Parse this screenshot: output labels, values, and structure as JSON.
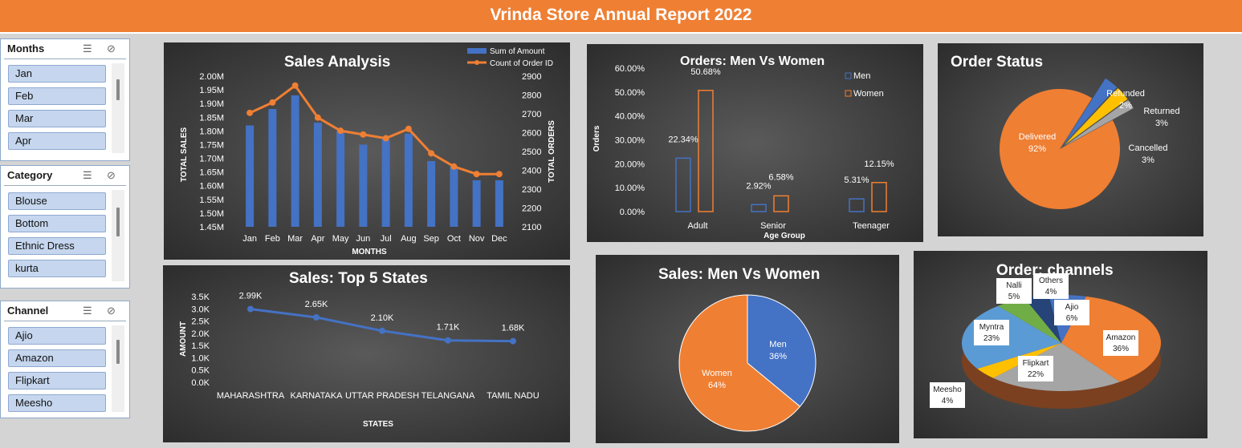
{
  "banner": {
    "title": "Vrinda Store Annual Report 2022"
  },
  "slicers": {
    "months": {
      "title": "Months",
      "items": [
        "Jan",
        "Feb",
        "Mar",
        "Apr"
      ]
    },
    "category": {
      "title": "Category",
      "items": [
        "Blouse",
        "Bottom",
        "Ethnic Dress",
        "kurta"
      ]
    },
    "channel": {
      "title": "Channel",
      "items": [
        "Ajio",
        "Amazon",
        "Flipkart",
        "Meesho"
      ]
    }
  },
  "icons": {
    "multiselect": "multi-select-icon",
    "clear_filter": "clear-filter-icon"
  },
  "colors": {
    "orange": "#ef7f33",
    "blue": "#4472c4",
    "gray": "#a5a5a5",
    "yellow": "#ffc000",
    "green": "#70ad47",
    "navy": "#264478",
    "lightblue": "#5b9bd5"
  },
  "chart_data": [
    {
      "id": "sales_analysis",
      "type": "bar",
      "title": "Sales Analysis",
      "xlabel": "MONTHS",
      "ylabel": "TOTAL SALES",
      "y2label": "TOTAL ORDERS",
      "categories": [
        "Jan",
        "Feb",
        "Mar",
        "Apr",
        "May",
        "Jun",
        "Jul",
        "Aug",
        "Sep",
        "Oct",
        "Nov",
        "Dec"
      ],
      "ylim": [
        1.45,
        2.0
      ],
      "y_ticks": [
        "2.00M",
        "1.95M",
        "1.90M",
        "1.85M",
        "1.80M",
        "1.75M",
        "1.70M",
        "1.65M",
        "1.60M",
        "1.55M",
        "1.50M",
        "1.45M"
      ],
      "y2lim": [
        2100,
        2900
      ],
      "y2_ticks": [
        "2900",
        "2800",
        "2700",
        "2600",
        "2500",
        "2400",
        "2300",
        "2200",
        "2100"
      ],
      "legend_position": "top-right",
      "series": [
        {
          "name": "Sum of Amount",
          "type": "bar",
          "values": [
            1.82,
            1.88,
            1.93,
            1.83,
            1.8,
            1.75,
            1.77,
            1.79,
            1.69,
            1.67,
            1.62,
            1.62
          ]
        },
        {
          "name": "Count of Order ID",
          "type": "line",
          "values": [
            2705,
            2760,
            2850,
            2680,
            2610,
            2590,
            2570,
            2620,
            2490,
            2420,
            2380,
            2380
          ]
        }
      ]
    },
    {
      "id": "orders_men_women",
      "type": "bar",
      "title": "Orders: Men Vs Women",
      "xlabel": "Age Group",
      "ylabel": "Orders",
      "categories": [
        "Adult",
        "Senior",
        "Teenager"
      ],
      "ylim": [
        0,
        60
      ],
      "y_ticks": [
        "60.00%",
        "50.00%",
        "40.00%",
        "30.00%",
        "20.00%",
        "10.00%",
        "0.00%"
      ],
      "legend_position": "right",
      "series": [
        {
          "name": "Men",
          "values": [
            22.34,
            2.92,
            5.31
          ],
          "labels": [
            "22.34%",
            "2.92%",
            "5.31%"
          ]
        },
        {
          "name": "Women",
          "values": [
            50.68,
            6.58,
            12.15
          ],
          "labels": [
            "50.68%",
            "6.58%",
            "12.15%"
          ]
        }
      ]
    },
    {
      "id": "order_status",
      "type": "pie",
      "title": "Order Status",
      "slices": [
        {
          "name": "Delivered",
          "value": 92,
          "label": "92%"
        },
        {
          "name": "Cancelled",
          "value": 3,
          "label": "3%"
        },
        {
          "name": "Returned",
          "value": 3,
          "label": "3%"
        },
        {
          "name": "Refunded",
          "value": 2,
          "label": "2%"
        }
      ]
    },
    {
      "id": "top_states",
      "type": "line",
      "title": "Sales: Top 5 States",
      "xlabel": "STATES",
      "ylabel": "AMOUNT",
      "categories": [
        "MAHARASHTRA",
        "KARNATAKA",
        "UTTAR PRADESH",
        "TELANGANA",
        "TAMIL NADU"
      ],
      "ylim": [
        0,
        3.5
      ],
      "y_ticks": [
        "3.5K",
        "3.0K",
        "2.5K",
        "2.0K",
        "1.5K",
        "1.0K",
        "0.5K",
        "0.0K"
      ],
      "values": [
        2.99,
        2.65,
        2.1,
        1.71,
        1.68
      ],
      "labels": [
        "2.99K",
        "2.65K",
        "2.10K",
        "1.71K",
        "1.68K"
      ]
    },
    {
      "id": "sales_men_women",
      "type": "pie",
      "title": "Sales: Men Vs Women",
      "slices": [
        {
          "name": "Men",
          "value": 36,
          "label": "36%"
        },
        {
          "name": "Women",
          "value": 64,
          "label": "64%"
        }
      ]
    },
    {
      "id": "order_channels",
      "type": "pie",
      "title": "Order: channels",
      "slices": [
        {
          "name": "Amazon",
          "value": 36,
          "label": "36%"
        },
        {
          "name": "Flipkart",
          "value": 22,
          "label": "22%"
        },
        {
          "name": "Meesho",
          "value": 4,
          "label": "4%"
        },
        {
          "name": "Myntra",
          "value": 23,
          "label": "23%"
        },
        {
          "name": "Nalli",
          "value": 5,
          "label": "5%"
        },
        {
          "name": "Others",
          "value": 4,
          "label": "4%"
        },
        {
          "name": "Ajio",
          "value": 6,
          "label": "6%"
        }
      ]
    }
  ]
}
